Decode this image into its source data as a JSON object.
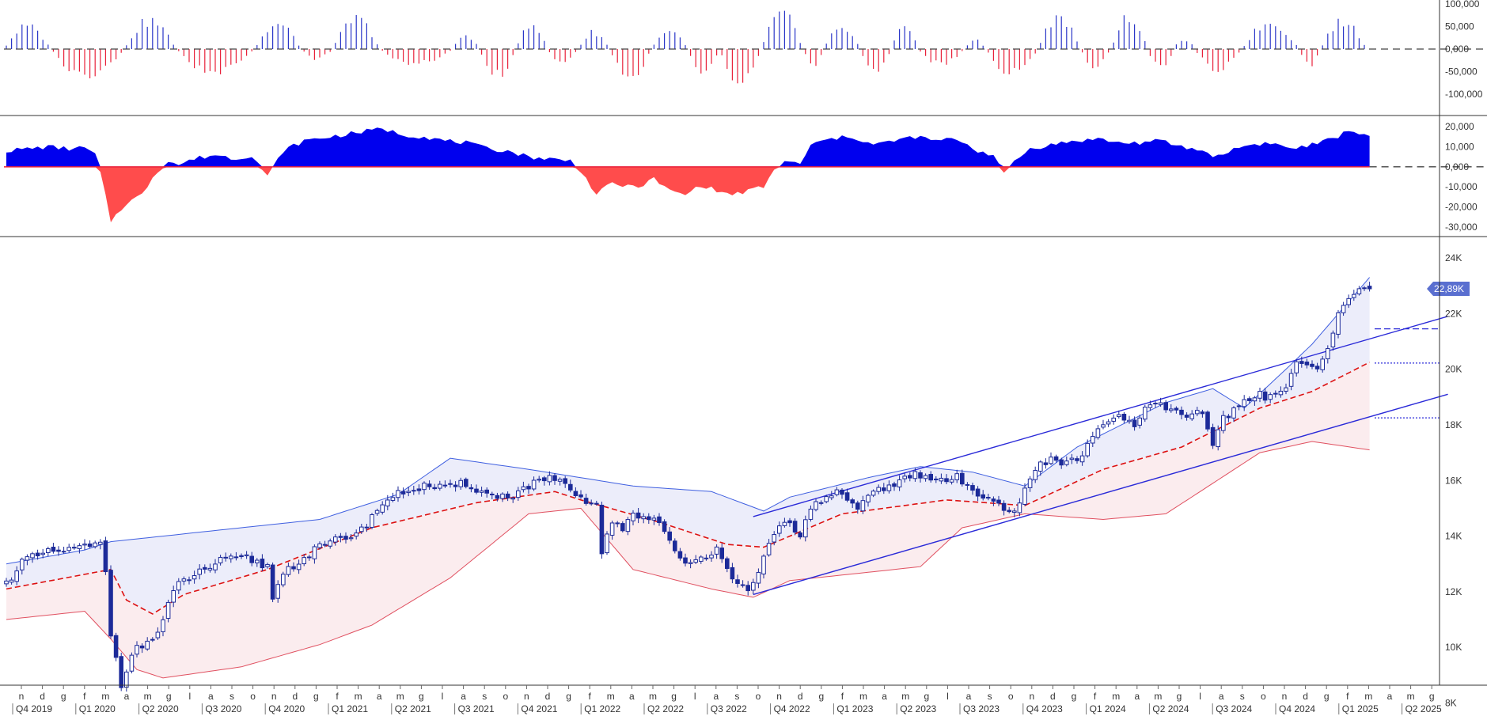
{
  "colors": {
    "up": "#2a36c8",
    "down": "#e8213a",
    "area_up": "#0000ee",
    "area_down": "#ff4c4c",
    "candle": "#1c2a99",
    "band_upper": "#3f5fe0",
    "band_lower": "#e05060",
    "band_fill_upper": "#ecedfa",
    "band_fill_lower": "#fbecee",
    "ma": "#dd1111",
    "channel": "#2a2ad8",
    "badge": "#5a6fd0",
    "separator": "#333333",
    "axis_text": "#333333"
  },
  "chart_data": [
    {
      "id": "histogram",
      "type": "bar",
      "ylim": [
        -100000,
        100000
      ],
      "y_ticks": [
        "100,000",
        "50,000",
        "0,000",
        "-50,000",
        "-100,000"
      ],
      "y_tick_values": [
        100000,
        50000,
        0,
        -50000,
        -100000
      ],
      "waves": [
        {
          "start": 0,
          "end": 9,
          "peak": 60000
        },
        {
          "start": 9,
          "end": 23,
          "peak": -80000
        },
        {
          "start": 23,
          "end": 33,
          "peak": 75000
        },
        {
          "start": 33,
          "end": 48,
          "peak": -65000
        },
        {
          "start": 48,
          "end": 57,
          "peak": 65000
        },
        {
          "start": 57,
          "end": 63,
          "peak": -25000
        },
        {
          "start": 63,
          "end": 72,
          "peak": 80000
        },
        {
          "start": 72,
          "end": 86,
          "peak": -40000
        },
        {
          "start": 86,
          "end": 91,
          "peak": 38000
        },
        {
          "start": 91,
          "end": 98,
          "peak": -70000
        },
        {
          "start": 98,
          "end": 104,
          "peak": 72000
        },
        {
          "start": 104,
          "end": 110,
          "peak": -35000
        },
        {
          "start": 110,
          "end": 116,
          "peak": 45000
        },
        {
          "start": 116,
          "end": 124,
          "peak": -80000
        },
        {
          "start": 124,
          "end": 131,
          "peak": 45000
        },
        {
          "start": 131,
          "end": 137,
          "peak": -60000
        },
        {
          "start": 137,
          "end": 145,
          "peak": -85000
        },
        {
          "start": 145,
          "end": 153,
          "peak": 92000
        },
        {
          "start": 153,
          "end": 157,
          "peak": -45000
        },
        {
          "start": 157,
          "end": 164,
          "peak": 60000
        },
        {
          "start": 164,
          "end": 170,
          "peak": -60000
        },
        {
          "start": 170,
          "end": 175,
          "peak": 65000
        },
        {
          "start": 175,
          "end": 184,
          "peak": -40000
        },
        {
          "start": 184,
          "end": 188,
          "peak": 25000
        },
        {
          "start": 188,
          "end": 198,
          "peak": -65000
        },
        {
          "start": 198,
          "end": 206,
          "peak": 90000
        },
        {
          "start": 206,
          "end": 212,
          "peak": -45000
        },
        {
          "start": 212,
          "end": 219,
          "peak": 88000
        },
        {
          "start": 219,
          "end": 224,
          "peak": -50000
        },
        {
          "start": 224,
          "end": 228,
          "peak": 28000
        },
        {
          "start": 228,
          "end": 237,
          "peak": -52000
        },
        {
          "start": 237,
          "end": 248,
          "peak": 70000
        },
        {
          "start": 248,
          "end": 252,
          "peak": -45000
        },
        {
          "start": 252,
          "end": 261,
          "peak": 72000
        }
      ]
    },
    {
      "id": "oscillator",
      "type": "area",
      "ylim": [
        -34000,
        24000
      ],
      "y_ticks": [
        "20,000",
        "10,000",
        "0,000",
        "-10,000",
        "-20,000",
        "-30,000"
      ],
      "y_tick_values": [
        20000,
        10000,
        0,
        -10000,
        -20000,
        -30000
      ],
      "keys": [
        [
          0,
          8000
        ],
        [
          8,
          10000
        ],
        [
          12,
          9000
        ],
        [
          15,
          9500
        ],
        [
          17,
          6000
        ],
        [
          18,
          -3000
        ],
        [
          20,
          -27000
        ],
        [
          23,
          -18000
        ],
        [
          26,
          -14000
        ],
        [
          28,
          -5000
        ],
        [
          31,
          3000
        ],
        [
          33,
          1000
        ],
        [
          36,
          4000
        ],
        [
          40,
          6000
        ],
        [
          44,
          4000
        ],
        [
          47,
          6000
        ],
        [
          50,
          -5000
        ],
        [
          53,
          8000
        ],
        [
          57,
          13000
        ],
        [
          62,
          15000
        ],
        [
          67,
          17000
        ],
        [
          72,
          19000
        ],
        [
          76,
          16000
        ],
        [
          80,
          15000
        ],
        [
          84,
          13000
        ],
        [
          88,
          12000
        ],
        [
          92,
          9000
        ],
        [
          96,
          8000
        ],
        [
          100,
          5000
        ],
        [
          104,
          4000
        ],
        [
          108,
          3000
        ],
        [
          110,
          -2000
        ],
        [
          113,
          -14000
        ],
        [
          116,
          -8000
        ],
        [
          119,
          -10000
        ],
        [
          122,
          -9000
        ],
        [
          124,
          -6000
        ],
        [
          127,
          -12000
        ],
        [
          130,
          -14000
        ],
        [
          133,
          -9000
        ],
        [
          136,
          -12000
        ],
        [
          139,
          -14000
        ],
        [
          142,
          -12000
        ],
        [
          145,
          -10000
        ],
        [
          147,
          -2000
        ],
        [
          149,
          3000
        ],
        [
          152,
          1000
        ],
        [
          154,
          11000
        ],
        [
          158,
          14000
        ],
        [
          162,
          15000
        ],
        [
          166,
          11000
        ],
        [
          170,
          13000
        ],
        [
          174,
          15000
        ],
        [
          178,
          13000
        ],
        [
          182,
          14000
        ],
        [
          186,
          8000
        ],
        [
          189,
          6000
        ],
        [
          191,
          -4000
        ],
        [
          193,
          3000
        ],
        [
          196,
          9000
        ],
        [
          200,
          11000
        ],
        [
          205,
          13000
        ],
        [
          209,
          14000
        ],
        [
          213,
          12000
        ],
        [
          217,
          12000
        ],
        [
          221,
          13000
        ],
        [
          225,
          10000
        ],
        [
          229,
          8000
        ],
        [
          232,
          5000
        ],
        [
          234,
          8000
        ],
        [
          238,
          11000
        ],
        [
          242,
          12000
        ],
        [
          246,
          9000
        ],
        [
          250,
          11000
        ],
        [
          254,
          14000
        ],
        [
          257,
          18000
        ],
        [
          259,
          17000
        ],
        [
          261,
          16000
        ]
      ]
    },
    {
      "id": "price",
      "type": "candlestick",
      "ylim": [
        7000,
        24800
      ],
      "y_ticks": [
        "24K",
        "22K",
        "20K",
        "18K",
        "16K",
        "14K",
        "12K",
        "10K",
        "8K"
      ],
      "y_tick_values": [
        24000,
        22000,
        20000,
        18000,
        16000,
        14000,
        12000,
        10000,
        8000
      ],
      "last_price_label": "22,89K",
      "last_price": 22890,
      "horizontal_levels": [
        {
          "value": 21450,
          "style": "dashed"
        },
        {
          "value": 20220,
          "style": "dotted"
        },
        {
          "value": 18250,
          "style": "dotted"
        }
      ],
      "channel_lines": [
        {
          "x1": 143,
          "y1": 14700,
          "x2": 276,
          "y2": 21900
        },
        {
          "x1": 143,
          "y1": 11900,
          "x2": 276,
          "y2": 19100
        }
      ],
      "close_keys": [
        [
          0,
          12300
        ],
        [
          3,
          13100
        ],
        [
          8,
          13400
        ],
        [
          12,
          13500
        ],
        [
          18,
          13700
        ],
        [
          19,
          12700
        ],
        [
          20,
          10500
        ],
        [
          22,
          8700
        ],
        [
          24,
          9800
        ],
        [
          27,
          10200
        ],
        [
          29,
          10500
        ],
        [
          31,
          11500
        ],
        [
          33,
          12300
        ],
        [
          37,
          12700
        ],
        [
          41,
          13100
        ],
        [
          46,
          13200
        ],
        [
          50,
          12900
        ],
        [
          51,
          11800
        ],
        [
          53,
          12700
        ],
        [
          56,
          13100
        ],
        [
          60,
          13600
        ],
        [
          64,
          13900
        ],
        [
          68,
          14200
        ],
        [
          72,
          15200
        ],
        [
          76,
          15600
        ],
        [
          80,
          15800
        ],
        [
          84,
          15700
        ],
        [
          88,
          15900
        ],
        [
          92,
          15500
        ],
        [
          96,
          15400
        ],
        [
          100,
          15800
        ],
        [
          104,
          16100
        ],
        [
          106,
          15900
        ],
        [
          110,
          15300
        ],
        [
          113,
          15100
        ],
        [
          114,
          13500
        ],
        [
          116,
          14400
        ],
        [
          118,
          14300
        ],
        [
          120,
          14800
        ],
        [
          124,
          14600
        ],
        [
          126,
          14300
        ],
        [
          128,
          13400
        ],
        [
          130,
          12900
        ],
        [
          133,
          13200
        ],
        [
          136,
          13600
        ],
        [
          139,
          12600
        ],
        [
          142,
          11900
        ],
        [
          144,
          12600
        ],
        [
          146,
          13700
        ],
        [
          149,
          14600
        ],
        [
          152,
          14100
        ],
        [
          155,
          15200
        ],
        [
          159,
          15600
        ],
        [
          163,
          14900
        ],
        [
          166,
          15600
        ],
        [
          170,
          15900
        ],
        [
          174,
          16200
        ],
        [
          178,
          16000
        ],
        [
          182,
          16100
        ],
        [
          185,
          15600
        ],
        [
          189,
          15400
        ],
        [
          192,
          14800
        ],
        [
          194,
          15200
        ],
        [
          197,
          16400
        ],
        [
          200,
          16800
        ],
        [
          203,
          16600
        ],
        [
          206,
          16900
        ],
        [
          209,
          17800
        ],
        [
          213,
          18400
        ],
        [
          216,
          17900
        ],
        [
          219,
          18800
        ],
        [
          222,
          18600
        ],
        [
          226,
          18200
        ],
        [
          229,
          18500
        ],
        [
          231,
          17300
        ],
        [
          233,
          18200
        ],
        [
          236,
          18700
        ],
        [
          239,
          19100
        ],
        [
          242,
          19000
        ],
        [
          245,
          19300
        ],
        [
          247,
          20400
        ],
        [
          250,
          20000
        ],
        [
          252,
          20300
        ],
        [
          255,
          21900
        ],
        [
          258,
          22700
        ],
        [
          260,
          23000
        ],
        [
          261,
          22890
        ]
      ],
      "ma_keys": [
        [
          0,
          12100
        ],
        [
          20,
          12800
        ],
        [
          23,
          11700
        ],
        [
          28,
          11200
        ],
        [
          34,
          11900
        ],
        [
          50,
          12800
        ],
        [
          70,
          14300
        ],
        [
          90,
          15200
        ],
        [
          105,
          15600
        ],
        [
          110,
          15300
        ],
        [
          125,
          14500
        ],
        [
          138,
          13700
        ],
        [
          145,
          13600
        ],
        [
          160,
          14800
        ],
        [
          180,
          15300
        ],
        [
          195,
          15100
        ],
        [
          210,
          16400
        ],
        [
          225,
          17200
        ],
        [
          240,
          18600
        ],
        [
          250,
          19200
        ],
        [
          261,
          20250
        ]
      ],
      "upper_keys": [
        [
          0,
          13000
        ],
        [
          15,
          13500
        ],
        [
          20,
          13800
        ],
        [
          30,
          14000
        ],
        [
          45,
          14300
        ],
        [
          60,
          14600
        ],
        [
          75,
          15500
        ],
        [
          85,
          16800
        ],
        [
          100,
          16400
        ],
        [
          110,
          16100
        ],
        [
          120,
          15800
        ],
        [
          135,
          15600
        ],
        [
          145,
          14900
        ],
        [
          150,
          15400
        ],
        [
          165,
          16100
        ],
        [
          175,
          16500
        ],
        [
          185,
          16300
        ],
        [
          195,
          15800
        ],
        [
          205,
          17200
        ],
        [
          222,
          18800
        ],
        [
          231,
          19300
        ],
        [
          237,
          18600
        ],
        [
          245,
          20000
        ],
        [
          250,
          20900
        ],
        [
          261,
          23300
        ]
      ],
      "lower_keys": [
        [
          0,
          11000
        ],
        [
          15,
          11300
        ],
        [
          20,
          10300
        ],
        [
          25,
          9200
        ],
        [
          30,
          8900
        ],
        [
          45,
          9300
        ],
        [
          60,
          10100
        ],
        [
          70,
          10800
        ],
        [
          85,
          12500
        ],
        [
          100,
          14800
        ],
        [
          110,
          15000
        ],
        [
          120,
          12800
        ],
        [
          135,
          12100
        ],
        [
          143,
          11800
        ],
        [
          150,
          12400
        ],
        [
          165,
          12700
        ],
        [
          175,
          12900
        ],
        [
          183,
          14300
        ],
        [
          195,
          14800
        ],
        [
          210,
          14600
        ],
        [
          222,
          14800
        ],
        [
          231,
          15900
        ],
        [
          240,
          17000
        ],
        [
          250,
          17400
        ],
        [
          261,
          17100
        ]
      ]
    }
  ],
  "x_axis": {
    "months": [
      "n",
      "d",
      "g",
      "f",
      "m",
      "a",
      "m",
      "g",
      "l",
      "a",
      "s",
      "o",
      "n",
      "d",
      "g",
      "f",
      "m",
      "a",
      "m",
      "g",
      "l",
      "a",
      "s",
      "o",
      "n",
      "d",
      "g",
      "f",
      "m",
      "a",
      "m",
      "g",
      "l",
      "a",
      "s",
      "o",
      "n",
      "d",
      "g",
      "f",
      "m",
      "a",
      "m",
      "g",
      "l",
      "a",
      "s",
      "o",
      "n",
      "d",
      "g",
      "f",
      "m",
      "a",
      "m",
      "g",
      "l",
      "a",
      "s",
      "o",
      "n",
      "d",
      "g",
      "f",
      "m",
      "a",
      "m",
      "g"
    ],
    "quarters": [
      "Q4 2019",
      "Q1 2020",
      "Q2 2020",
      "Q3 2020",
      "Q4 2020",
      "Q1 2021",
      "Q2 2021",
      "Q3 2021",
      "Q4 2021",
      "Q1 2022",
      "Q2 2022",
      "Q3 2022",
      "Q4 2022",
      "Q1 2023",
      "Q2 2023",
      "Q3 2023",
      "Q4 2023",
      "Q1 2024",
      "Q2 2024",
      "Q3 2024",
      "Q4 2024",
      "Q1 2025",
      "Q2 2025"
    ]
  }
}
